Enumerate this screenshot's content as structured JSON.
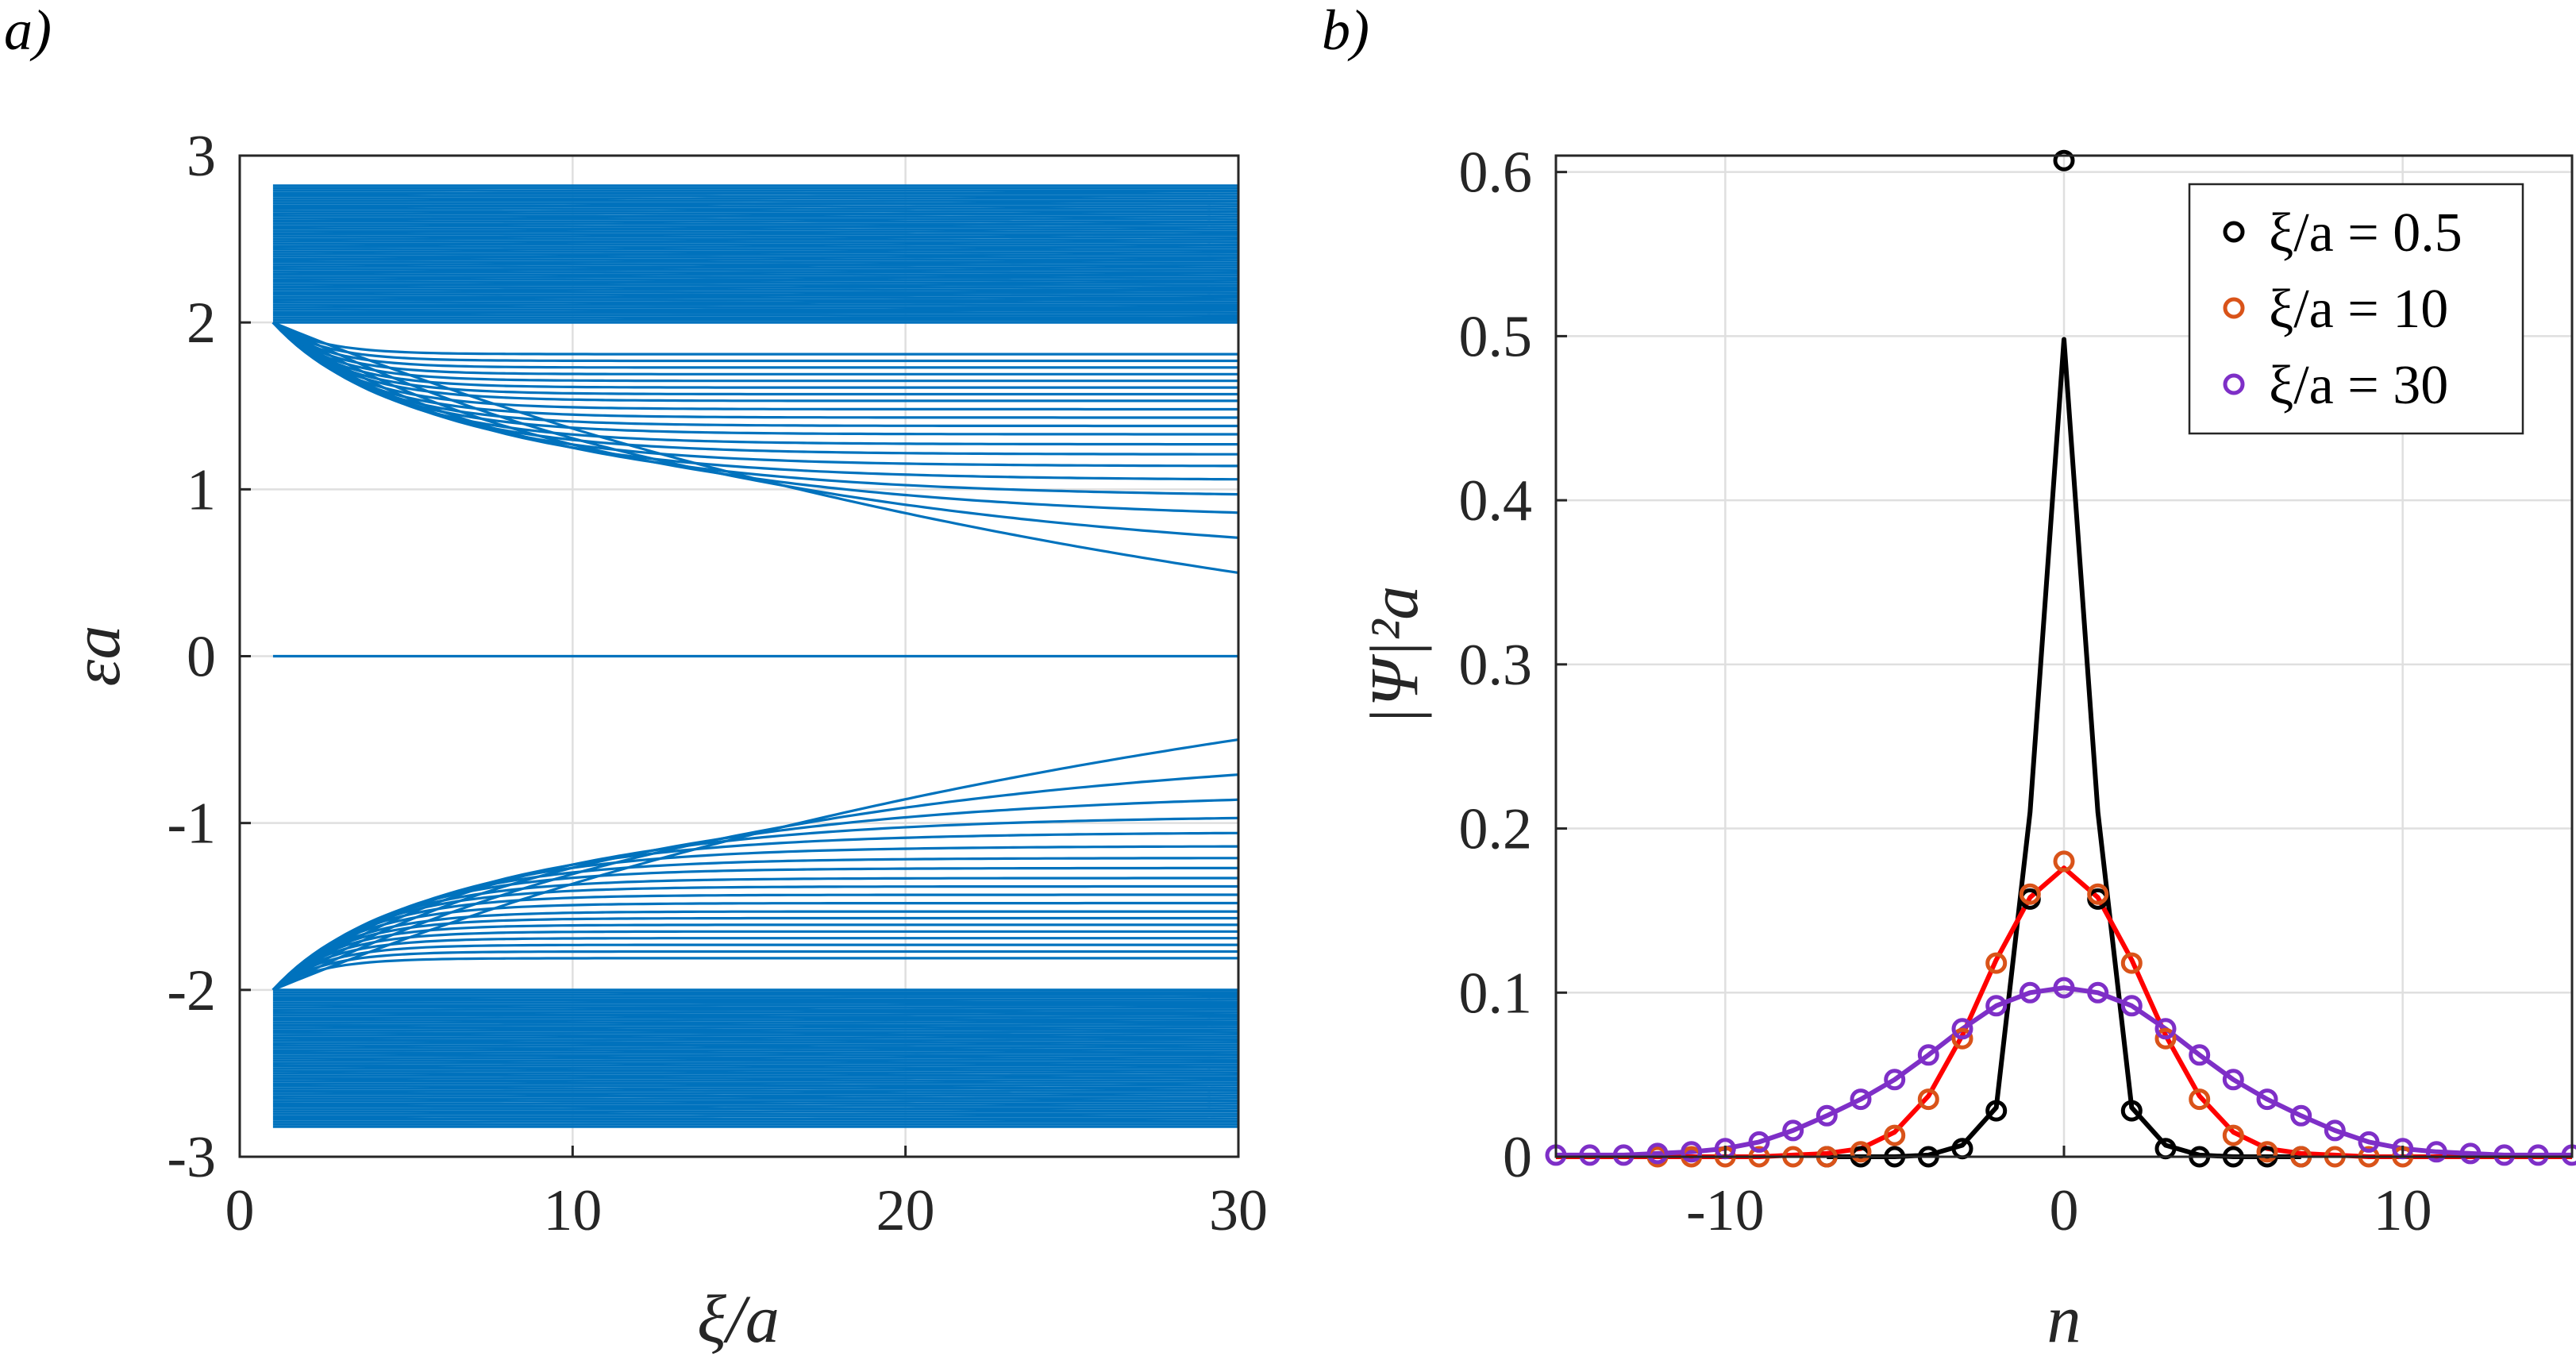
{
  "chart_data": [
    {
      "panel": "a)",
      "type": "line",
      "xlabel": "ξ/a",
      "ylabel": "εa",
      "xlim": [
        0,
        30
      ],
      "ylim": [
        -3,
        3
      ],
      "xticks": [
        "0",
        "10",
        "20",
        "30"
      ],
      "yticks": [
        "-3",
        "-2",
        "-1",
        "0",
        "1",
        "2",
        "3"
      ],
      "grid": true,
      "color": "#0072BD",
      "x_range": [
        1,
        30
      ],
      "continuum_band": {
        "inner": 2.0,
        "outer": 2.82
      },
      "zero_mode": 0,
      "bound_states_at_xi_30": [
        0.5,
        0.71,
        0.86,
        0.97,
        1.06,
        1.14,
        1.21,
        1.27,
        1.33,
        1.38,
        1.43,
        1.48,
        1.53,
        1.57,
        1.61,
        1.65,
        1.69,
        1.73,
        1.77,
        1.81
      ]
    },
    {
      "panel": "b)",
      "type": "line+scatter",
      "xlabel": "n",
      "ylabel": "|Ψ|²a",
      "xlim": [
        -15,
        15
      ],
      "ylim": [
        0,
        0.61
      ],
      "xticks": [
        "-10",
        "0",
        "10"
      ],
      "yticks": [
        "0",
        "0.1",
        "0.2",
        "0.3",
        "0.4",
        "0.5",
        "0.6"
      ],
      "grid": true,
      "legend_position": "top-right",
      "series": [
        {
          "name": "ξ/a = 0.5",
          "color": "#000000",
          "xi": 0.5,
          "markers_x": [
            -7,
            -6,
            -5,
            -4,
            -3,
            -2,
            -1,
            0,
            1,
            2,
            3,
            4,
            5,
            6,
            7
          ],
          "markers_y": [
            0,
            0,
            0,
            0,
            0.005,
            0.028,
            0.157,
            0.607,
            0.157,
            0.028,
            0.005,
            0,
            0,
            0,
            0
          ],
          "line_x": [
            -7,
            -6,
            -5,
            -4,
            -3,
            -2,
            -1,
            0,
            1,
            2,
            3,
            4,
            5,
            6,
            7
          ],
          "line_y": [
            0,
            0,
            0,
            0.001,
            0.007,
            0.03,
            0.21,
            0.498,
            0.21,
            0.03,
            0.007,
            0.001,
            0,
            0,
            0
          ]
        },
        {
          "name": "ξ/a = 10",
          "color": "#D95319",
          "xi": 10,
          "markers_x": [
            -12,
            -11,
            -10,
            -9,
            -8,
            -7,
            -6,
            -5,
            -4,
            -3,
            -2,
            -1,
            0,
            1,
            2,
            3,
            4,
            5,
            6,
            7,
            8,
            9,
            10
          ],
          "markers_y": [
            0,
            0,
            0,
            0,
            0,
            0,
            0.003,
            0.013,
            0.035,
            0.072,
            0.118,
            0.16,
            0.18,
            0.16,
            0.118,
            0.072,
            0.035,
            0.013,
            0.003,
            0,
            0,
            0,
            0
          ],
          "line_color": "#FF0000",
          "line_x": [
            -15,
            -14,
            -13,
            -12,
            -11,
            -10,
            -9,
            -8,
            -7,
            -6,
            -5,
            -4,
            -3,
            -2,
            -1,
            0,
            1,
            2,
            3,
            4,
            5,
            6,
            7,
            8,
            9,
            10,
            11,
            12,
            13,
            14,
            15
          ],
          "line_y": [
            0,
            0,
            0,
            0,
            0,
            0,
            0,
            0.001,
            0.002,
            0.005,
            0.015,
            0.037,
            0.074,
            0.12,
            0.158,
            0.176,
            0.158,
            0.12,
            0.074,
            0.037,
            0.015,
            0.005,
            0.002,
            0.001,
            0,
            0,
            0,
            0,
            0,
            0,
            0
          ]
        },
        {
          "name": "ξ/a = 30",
          "color": "#7E2FC7",
          "xi": 30,
          "markers_x": [
            -15,
            -14,
            -13,
            -12,
            -11,
            -10,
            -9,
            -8,
            -7,
            -6,
            -5,
            -4,
            -3,
            -2,
            -1,
            0,
            1,
            2,
            3,
            4,
            5,
            6,
            7,
            8,
            9,
            10,
            11,
            12,
            13,
            14,
            15
          ],
          "markers_y": [
            0.001,
            0.001,
            0.001,
            0.002,
            0.003,
            0.005,
            0.009,
            0.016,
            0.025,
            0.035,
            0.047,
            0.062,
            0.078,
            0.092,
            0.1,
            0.103,
            0.1,
            0.092,
            0.078,
            0.062,
            0.047,
            0.035,
            0.025,
            0.016,
            0.009,
            0.005,
            0.003,
            0.002,
            0.001,
            0.001,
            0.001
          ],
          "line_x": [
            -15,
            -14,
            -13,
            -12,
            -11,
            -10,
            -9,
            -8,
            -7,
            -6,
            -5,
            -4,
            -3,
            -2,
            -1,
            0,
            1,
            2,
            3,
            4,
            5,
            6,
            7,
            8,
            9,
            10,
            11,
            12,
            13,
            14,
            15
          ],
          "line_y": [
            0.001,
            0.001,
            0.001,
            0.002,
            0.003,
            0.005,
            0.009,
            0.016,
            0.025,
            0.035,
            0.047,
            0.062,
            0.078,
            0.092,
            0.1,
            0.103,
            0.1,
            0.092,
            0.078,
            0.062,
            0.047,
            0.035,
            0.025,
            0.016,
            0.009,
            0.005,
            0.003,
            0.002,
            0.001,
            0.001,
            0.001
          ]
        }
      ]
    }
  ]
}
